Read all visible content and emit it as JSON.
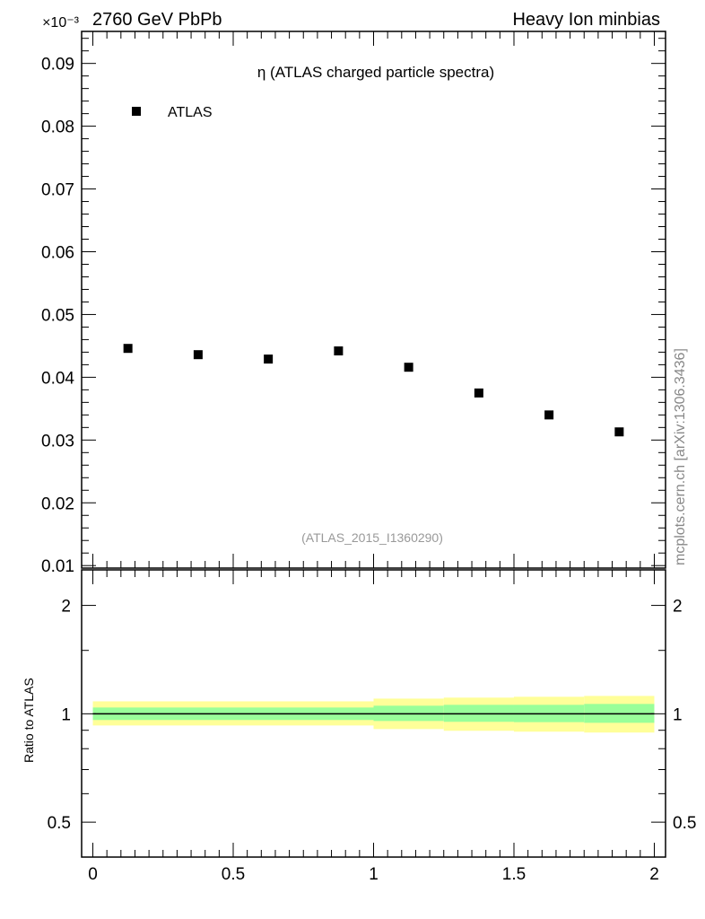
{
  "header": {
    "left": "2760 GeV PbPb",
    "right": "Heavy Ion minbias",
    "exponent": "×10⁻³"
  },
  "side_label": "mcplots.cern.ch [arXiv:1306.3436]",
  "chart_data": [
    {
      "type": "scatter",
      "title": "η (ATLAS charged particle spectra)",
      "watermark": "(ATLAS_2015_I1360290)",
      "legend": [
        {
          "name": "ATLAS",
          "marker": "square",
          "color": "#000000"
        }
      ],
      "legend_placement": "top-left",
      "x": [
        0.125,
        0.375,
        0.625,
        0.875,
        1.125,
        1.375,
        1.625,
        1.875
      ],
      "y": [
        0.0446,
        0.0436,
        0.0429,
        0.0442,
        0.0416,
        0.0375,
        0.034,
        0.0313
      ],
      "xlim": [
        -0.04,
        2.04
      ],
      "ylim": [
        0.0096,
        0.0951
      ],
      "yticks": [
        "0.01",
        "0.02",
        "0.03",
        "0.04",
        "0.05",
        "0.06",
        "0.07",
        "0.08",
        "0.09"
      ]
    },
    {
      "type": "area",
      "ylabel": "Ratio to ATLAS",
      "yscale": "log",
      "ylim": [
        0.4,
        2.51
      ],
      "xlim": [
        -0.04,
        2.04
      ],
      "yticks": [
        "0.5",
        "1",
        "2"
      ],
      "xticks": [
        "0",
        "0.5",
        "1",
        "1.5",
        "2"
      ],
      "bins": [
        [
          0,
          1
        ],
        [
          1,
          1.25
        ],
        [
          1.25,
          1.5
        ],
        [
          1.5,
          1.75
        ],
        [
          1.75,
          2
        ]
      ],
      "yellow_band": [
        [
          0.928,
          1.083
        ],
        [
          0.907,
          1.102
        ],
        [
          0.897,
          1.109
        ],
        [
          0.892,
          1.115
        ],
        [
          0.887,
          1.121
        ]
      ],
      "green_band": [
        [
          0.961,
          1.041
        ],
        [
          0.955,
          1.053
        ],
        [
          0.95,
          1.059
        ],
        [
          0.948,
          1.059
        ],
        [
          0.944,
          1.065
        ]
      ],
      "colors": {
        "yellow": "#ffff99",
        "green": "#99ff99"
      }
    }
  ]
}
